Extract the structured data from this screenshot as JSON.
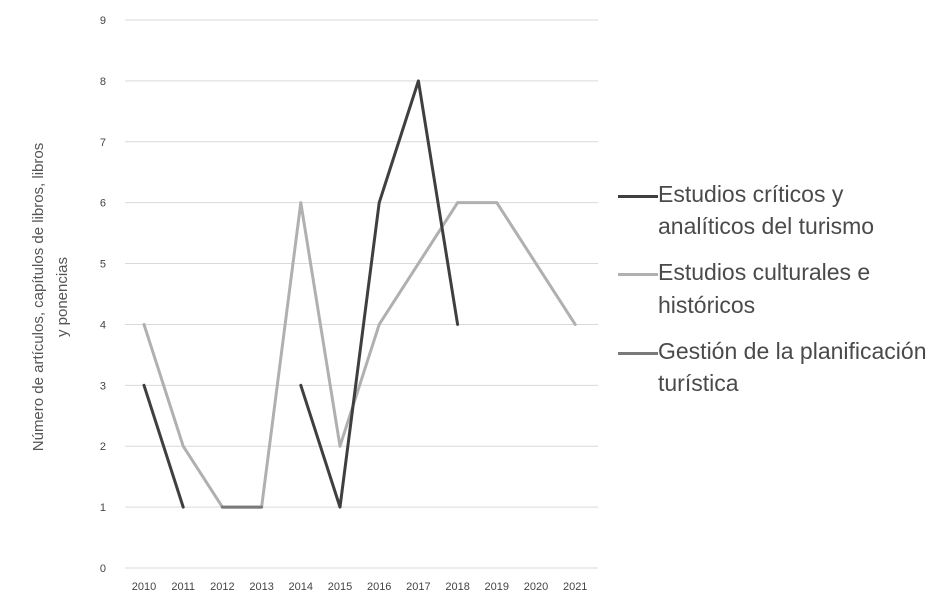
{
  "chart_data": {
    "type": "line",
    "ylabel": "Número de artículos, capítulos de libros, libros y ponencias",
    "ylabel_lines": [
      "Número de artículos, capítulos de libros, libros",
      "y ponencias"
    ],
    "xlabel": "",
    "x": [
      "2010",
      "2011",
      "2012",
      "2013",
      "2014",
      "2015",
      "2016",
      "2017",
      "2018",
      "2019",
      "2020",
      "2021"
    ],
    "ylim": [
      0,
      9
    ],
    "yticks": [
      0,
      1,
      2,
      3,
      4,
      5,
      6,
      7,
      8,
      9
    ],
    "grid": true,
    "legend_position": "right",
    "series": [
      {
        "name": "Estudios críticos y analíticos del turismo",
        "color": "#3f3f3f",
        "values": [
          3,
          1,
          null,
          null,
          3,
          1,
          6,
          8,
          4,
          null,
          null,
          null
        ]
      },
      {
        "name": "Estudios culturales e históricos",
        "color": "#b0b0b0",
        "values": [
          4,
          2,
          1,
          1,
          6,
          2,
          4,
          5,
          6,
          6,
          5,
          4
        ]
      },
      {
        "name": "Gestión de la planificación turística",
        "color": "#7a7a7a",
        "values": [
          null,
          null,
          1,
          1,
          null,
          null,
          null,
          null,
          null,
          null,
          null,
          null
        ]
      }
    ]
  }
}
